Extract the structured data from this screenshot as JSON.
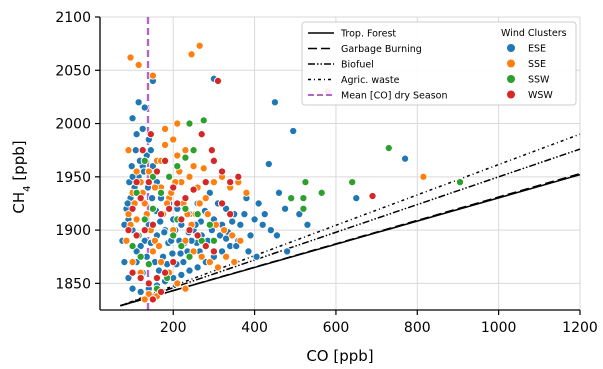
{
  "chart_data": {
    "type": "scatter",
    "xlabel": "CO [ppb]",
    "ylabel_main": "CH",
    "ylabel_sub": "4",
    "ylabel_unit": " [ppb]",
    "xlim": [
      20,
      1200
    ],
    "ylim": [
      1825,
      2100
    ],
    "xticks": [
      200,
      400,
      600,
      800,
      1000,
      1200
    ],
    "yticks": [
      1850,
      1900,
      1950,
      2000,
      2050,
      2100
    ],
    "grid": true,
    "legend_position": "top-right",
    "lines": [
      {
        "name": "Trop. Forest",
        "style": "solid",
        "x": [
          70,
          1200
        ],
        "y": [
          1829,
          1952
        ]
      },
      {
        "name": "Garbage Burning",
        "style": "dashed",
        "x": [
          70,
          1200
        ],
        "y": [
          1829,
          1953
        ]
      },
      {
        "name": "Biofuel",
        "style": "dashdotdot",
        "x": [
          70,
          1200
        ],
        "y": [
          1829,
          1976
        ]
      },
      {
        "name": "Agric. waste",
        "style": "dashdot",
        "x": [
          70,
          1200
        ],
        "y": [
          1829,
          1990
        ]
      },
      {
        "name": "Mean [CO] dry Season",
        "style": "vertical-dashed",
        "color": "#b366c4",
        "x": [
          138,
          138
        ],
        "y": [
          1825,
          2100
        ]
      }
    ],
    "legend_title": "Wind Clusters",
    "clusters": [
      {
        "name": "ESE",
        "color": "#1f77b4",
        "points": [
          [
            300,
            2042
          ],
          [
            450,
            2020
          ],
          [
            495,
            1993
          ],
          [
            435,
            1962
          ],
          [
            770,
            1967
          ],
          [
            475,
            1920
          ],
          [
            510,
            1915
          ],
          [
            460,
            1935
          ],
          [
            530,
            1905
          ],
          [
            650,
            1930
          ],
          [
            350,
            1915
          ],
          [
            330,
            1920
          ],
          [
            300,
            1910
          ],
          [
            270,
            1895
          ],
          [
            250,
            1900
          ],
          [
            220,
            1905
          ],
          [
            200,
            1910
          ],
          [
            180,
            1900
          ],
          [
            160,
            1895
          ],
          [
            140,
            1905
          ],
          [
            130,
            1890
          ],
          [
            120,
            1885
          ],
          [
            110,
            1880
          ],
          [
            100,
            1900
          ],
          [
            90,
            1910
          ],
          [
            85,
            1920
          ],
          [
            95,
            1930
          ],
          [
            105,
            1940
          ],
          [
            115,
            1950
          ],
          [
            125,
            1960
          ],
          [
            135,
            1970
          ],
          [
            145,
            1975
          ],
          [
            110,
            1990
          ],
          [
            100,
            2005
          ],
          [
            125,
            1995
          ],
          [
            140,
            1985
          ],
          [
            150,
            1960
          ],
          [
            160,
            1945
          ],
          [
            170,
            1930
          ],
          [
            190,
            1925
          ],
          [
            210,
            1920
          ],
          [
            240,
            1915
          ],
          [
            260,
            1925
          ],
          [
            290,
            1935
          ],
          [
            380,
            1930
          ],
          [
            400,
            1910
          ],
          [
            420,
            1905
          ],
          [
            390,
            1895
          ],
          [
            360,
            1890
          ],
          [
            340,
            1885
          ],
          [
            320,
            1880
          ],
          [
            300,
            1875
          ],
          [
            280,
            1870
          ],
          [
            260,
            1865
          ],
          [
            240,
            1862
          ],
          [
            220,
            1858
          ],
          [
            200,
            1855
          ],
          [
            180,
            1852
          ],
          [
            160,
            1848
          ],
          [
            140,
            1845
          ],
          [
            120,
            1842
          ],
          [
            100,
            1845
          ],
          [
            90,
            1855
          ],
          [
            80,
            1870
          ],
          [
            75,
            1890
          ],
          [
            80,
            1905
          ],
          [
            88,
            1925
          ],
          [
            92,
            1945
          ],
          [
            98,
            1960
          ],
          [
            108,
            1975
          ],
          [
            118,
            1965
          ],
          [
            128,
            1955
          ],
          [
            138,
            1940
          ],
          [
            148,
            1930
          ],
          [
            158,
            1918
          ],
          [
            168,
            1908
          ],
          [
            178,
            1898
          ],
          [
            188,
            1888
          ],
          [
            198,
            1878
          ],
          [
            208,
            1868
          ],
          [
            218,
            1878
          ],
          [
            228,
            1888
          ],
          [
            238,
            1898
          ],
          [
            248,
            1880
          ],
          [
            258,
            1888
          ],
          [
            268,
            1908
          ],
          [
            278,
            1918
          ],
          [
            310,
            1925
          ],
          [
            320,
            1905
          ],
          [
            335,
            1898
          ],
          [
            345,
            1908
          ],
          [
            365,
            1905
          ],
          [
            375,
            1915
          ],
          [
            410,
            1925
          ],
          [
            425,
            1915
          ],
          [
            440,
            1900
          ],
          [
            455,
            1895
          ],
          [
            480,
            1880
          ],
          [
            150,
            2040
          ],
          [
            130,
            2015
          ],
          [
            115,
            2020
          ],
          [
            100,
            1950
          ],
          [
            110,
            1870
          ],
          [
            125,
            1860
          ],
          [
            135,
            1875
          ],
          [
            145,
            1888
          ],
          [
            155,
            1870
          ],
          [
            165,
            1862
          ],
          [
            175,
            1875
          ],
          [
            185,
            1868
          ],
          [
            195,
            1890
          ],
          [
            205,
            1900
          ],
          [
            215,
            1890
          ],
          [
            225,
            1870
          ],
          [
            235,
            1880
          ],
          [
            245,
            1890
          ],
          [
            255,
            1905
          ],
          [
            265,
            1880
          ],
          [
            285,
            1890
          ],
          [
            295,
            1900
          ],
          [
            315,
            1895
          ],
          [
            330,
            1892
          ],
          [
            355,
            1885
          ],
          [
            385,
            1880
          ],
          [
            405,
            1875
          ]
        ]
      },
      {
        "name": "SSE",
        "color": "#ff7f0e",
        "points": [
          [
            265,
            2073
          ],
          [
            245,
            2065
          ],
          [
            95,
            2062
          ],
          [
            115,
            2055
          ],
          [
            150,
            2045
          ],
          [
            815,
            1950
          ],
          [
            200,
            1985
          ],
          [
            180,
            1980
          ],
          [
            210,
            1970
          ],
          [
            230,
            1975
          ],
          [
            250,
            1960
          ],
          [
            275,
            1958
          ],
          [
            300,
            1945
          ],
          [
            320,
            1950
          ],
          [
            340,
            1940
          ],
          [
            360,
            1945
          ],
          [
            380,
            1935
          ],
          [
            160,
            1965
          ],
          [
            140,
            1955
          ],
          [
            120,
            1945
          ],
          [
            100,
            1935
          ],
          [
            90,
            1915
          ],
          [
            110,
            1910
          ],
          [
            130,
            1925
          ],
          [
            170,
            1940
          ],
          [
            190,
            1930
          ],
          [
            220,
            1945
          ],
          [
            240,
            1950
          ],
          [
            260,
            1940
          ],
          [
            280,
            1930
          ],
          [
            200,
            1900
          ],
          [
            230,
            1890
          ],
          [
            250,
            1880
          ],
          [
            270,
            1875
          ],
          [
            290,
            1870
          ],
          [
            310,
            1865
          ],
          [
            330,
            1875
          ],
          [
            350,
            1870
          ],
          [
            150,
            1880
          ],
          [
            170,
            1870
          ],
          [
            190,
            1860
          ],
          [
            210,
            1850
          ],
          [
            230,
            1845
          ],
          [
            120,
            1860
          ],
          [
            100,
            1870
          ],
          [
            85,
            1890
          ],
          [
            95,
            1905
          ],
          [
            105,
            1925
          ],
          [
            125,
            1935
          ],
          [
            135,
            1915
          ],
          [
            145,
            1900
          ],
          [
            155,
            1890
          ],
          [
            165,
            1885
          ],
          [
            175,
            1915
          ],
          [
            185,
            1925
          ],
          [
            195,
            1935
          ],
          [
            205,
            1945
          ],
          [
            215,
            1955
          ],
          [
            225,
            1925
          ],
          [
            235,
            1915
          ],
          [
            245,
            1905
          ],
          [
            255,
            1915
          ],
          [
            265,
            1925
          ],
          [
            285,
            1915
          ],
          [
            305,
            1905
          ],
          [
            325,
            1900
          ],
          [
            345,
            1895
          ],
          [
            365,
            1890
          ],
          [
            140,
            1840
          ],
          [
            130,
            1835
          ],
          [
            160,
            1838
          ],
          [
            110,
            1955
          ],
          [
            90,
            1975
          ],
          [
            180,
            1995
          ],
          [
            210,
            2000
          ],
          [
            170,
            1965
          ],
          [
            155,
            1940
          ]
        ]
      },
      {
        "name": "SSW",
        "color": "#2ca02c",
        "points": [
          [
            730,
            1977
          ],
          [
            905,
            1945
          ],
          [
            640,
            1945
          ],
          [
            565,
            1935
          ],
          [
            525,
            1945
          ],
          [
            520,
            1930
          ],
          [
            490,
            1930
          ],
          [
            520,
            1920
          ],
          [
            275,
            2003
          ],
          [
            240,
            2000
          ],
          [
            250,
            1975
          ],
          [
            230,
            1968
          ],
          [
            210,
            1960
          ],
          [
            190,
            1950
          ],
          [
            170,
            1935
          ],
          [
            150,
            1920
          ],
          [
            130,
            1910
          ],
          [
            115,
            1895
          ],
          [
            100,
            1885
          ],
          [
            120,
            1875
          ],
          [
            140,
            1868
          ],
          [
            200,
            1895
          ],
          [
            220,
            1885
          ],
          [
            240,
            1875
          ],
          [
            185,
            1855
          ],
          [
            160,
            1845
          ],
          [
            230,
            1920
          ],
          [
            260,
            1915
          ],
          [
            290,
            1905
          ],
          [
            300,
            1890
          ],
          [
            150,
            1950
          ],
          [
            130,
            1965
          ],
          [
            110,
            1935
          ],
          [
            270,
            1890
          ],
          [
            210,
            1910
          ]
        ]
      },
      {
        "name": "WSW",
        "color": "#d62728",
        "points": [
          [
            310,
            2040
          ],
          [
            580,
            2030
          ],
          [
            690,
            1932
          ],
          [
            295,
            1975
          ],
          [
            270,
            1990
          ],
          [
            300,
            1965
          ],
          [
            320,
            1955
          ],
          [
            340,
            1945
          ],
          [
            360,
            1950
          ],
          [
            280,
            1945
          ],
          [
            250,
            1938
          ],
          [
            230,
            1930
          ],
          [
            210,
            1925
          ],
          [
            190,
            1920
          ],
          [
            170,
            1915
          ],
          [
            150,
            1905
          ],
          [
            130,
            1900
          ],
          [
            110,
            1895
          ],
          [
            100,
            1920
          ],
          [
            120,
            1930
          ],
          [
            140,
            1945
          ],
          [
            160,
            1955
          ],
          [
            180,
            1965
          ],
          [
            200,
            1940
          ],
          [
            220,
            1910
          ],
          [
            240,
            1900
          ],
          [
            260,
            1895
          ],
          [
            280,
            1885
          ],
          [
            300,
            1880
          ],
          [
            200,
            1870
          ],
          [
            180,
            1860
          ],
          [
            160,
            1855
          ],
          [
            140,
            1850
          ],
          [
            120,
            1855
          ],
          [
            100,
            1860
          ],
          [
            150,
            1835
          ],
          [
            170,
            1842
          ],
          [
            90,
            1900
          ],
          [
            110,
            1945
          ],
          [
            125,
            1975
          ],
          [
            145,
            1990
          ],
          [
            320,
            1925
          ],
          [
            340,
            1915
          ]
        ]
      }
    ]
  }
}
